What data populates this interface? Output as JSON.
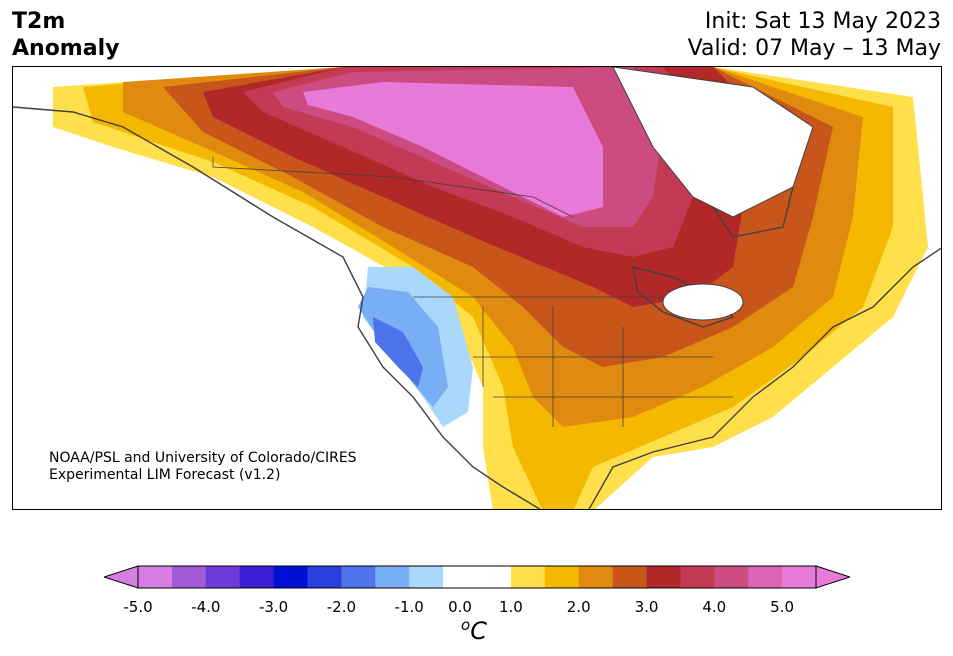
{
  "header": {
    "title_line1": "T2m",
    "title_line2": "Anomaly",
    "init": "Init: Sat 13 May 2023",
    "valid": "Valid: 07 May – 13 May"
  },
  "credit": {
    "line1": "NOAA/PSL and University of Colorado/CIRES",
    "line2": "Experimental LIM Forecast (v1.2)"
  },
  "colorbar": {
    "unit_super": "o",
    "unit_main": "C",
    "ticks": [
      "-5.0",
      "-4.0",
      "-3.0",
      "-2.0",
      "-1.0",
      "0.0",
      "1.0",
      "2.0",
      "3.0",
      "4.0",
      "5.0"
    ],
    "levels": [
      -5.0,
      -4.5,
      -4.0,
      -3.5,
      -3.0,
      -2.5,
      -2.0,
      -1.5,
      -1.0,
      -0.5,
      0.5,
      1.0,
      1.5,
      2.0,
      2.5,
      3.0,
      3.5,
      4.0,
      4.5,
      5.0
    ],
    "colors": [
      "#d77ee5",
      "#a25ad9",
      "#6e3ad9",
      "#3a1fd6",
      "#0010d4",
      "#2a3fe0",
      "#4f73ea",
      "#78aef4",
      "#aad8fb",
      "#ffffff",
      "#ffffff",
      "#ffe04a",
      "#f5b800",
      "#e08a10",
      "#c8561b",
      "#b22727",
      "#c33a55",
      "#cc4c82",
      "#da64b6",
      "#e87ad9"
    ],
    "under_color": "#d77ee5",
    "over_color": "#e87ad9"
  }
}
